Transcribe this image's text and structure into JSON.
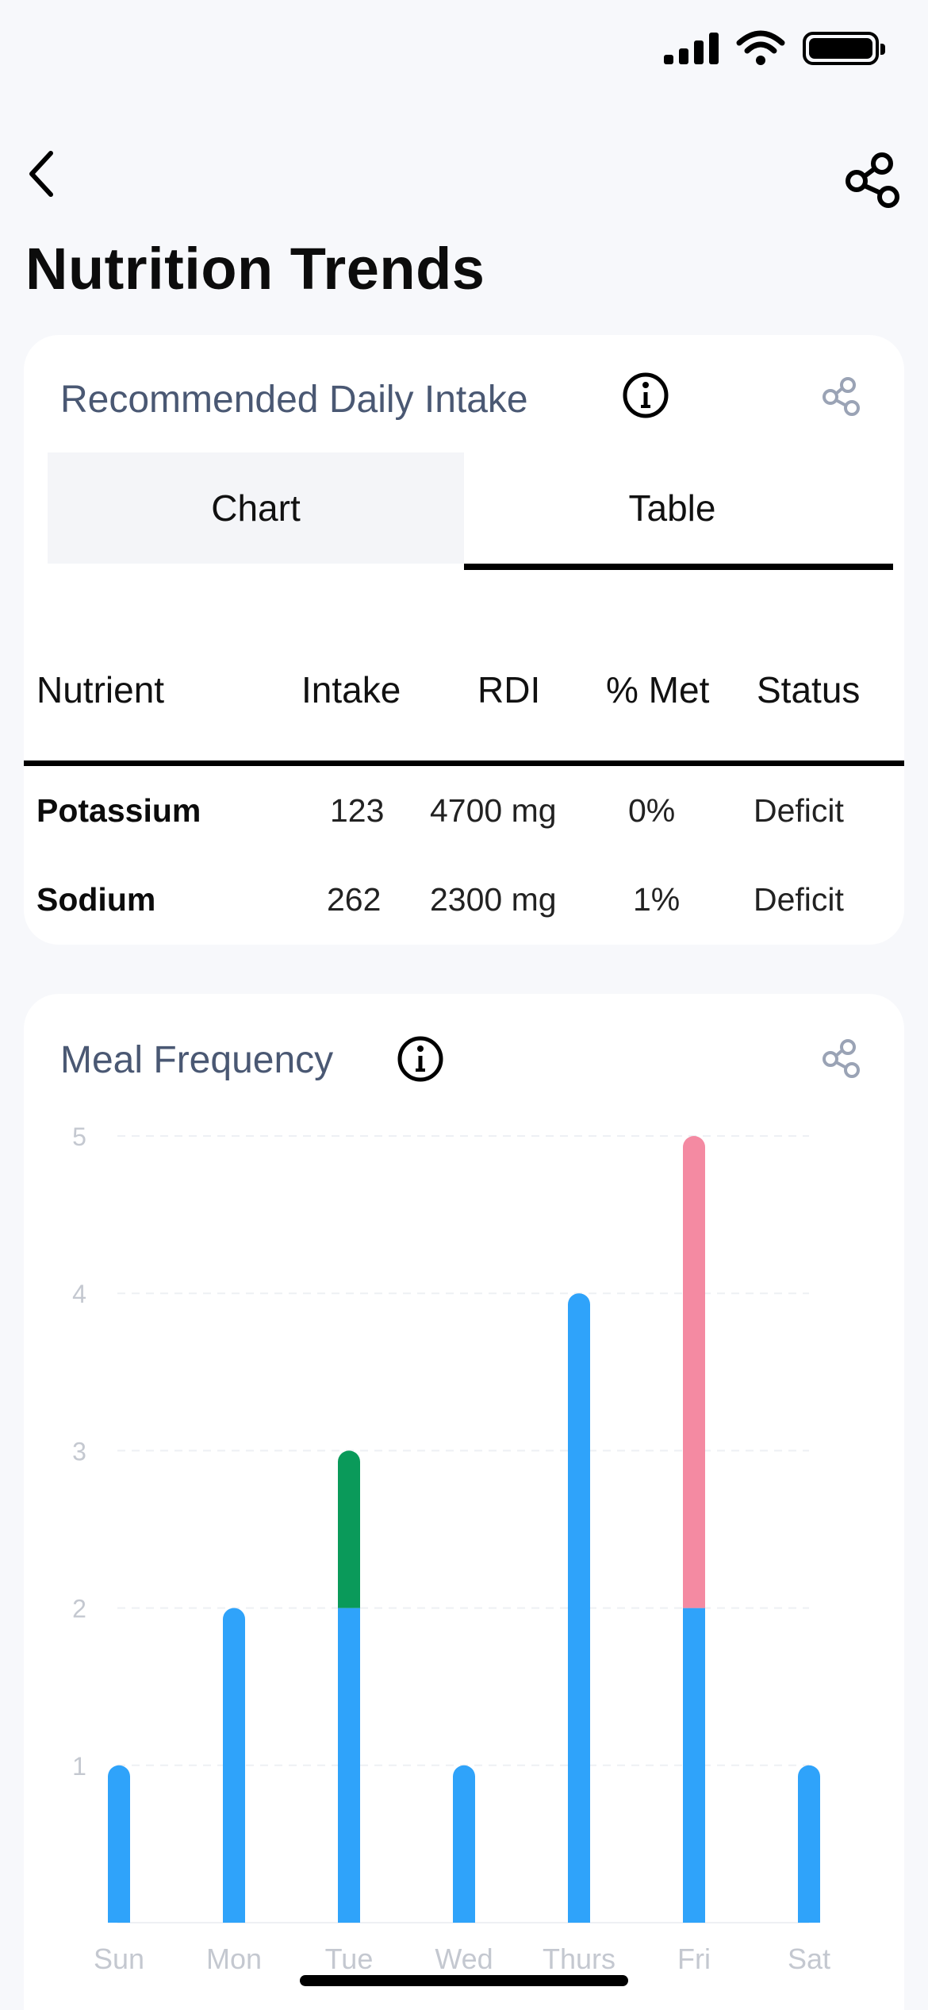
{
  "page": {
    "title": "Nutrition Trends"
  },
  "rdi_card": {
    "title": "Recommended Daily Intake",
    "tabs": {
      "chart": "Chart",
      "table": "Table"
    },
    "table": {
      "headers": {
        "nutrient": "Nutrient",
        "intake": "Intake",
        "rdi": "RDI",
        "met": "% Met",
        "status": "Status"
      },
      "rows": [
        {
          "nutrient": "Potassium",
          "intake": "123",
          "rdi": "4700 mg",
          "met": "0%",
          "status": "Deficit"
        },
        {
          "nutrient": "Sodium",
          "intake": "262",
          "rdi": "2300 mg",
          "met": "1%",
          "status": "Deficit"
        }
      ]
    }
  },
  "meal_card": {
    "title": "Meal Frequency"
  },
  "icons": {
    "back": "chevron-left-icon",
    "share": "share-icon",
    "info": "info-icon"
  },
  "colors": {
    "blue": "#2fa3fa",
    "green": "#0a9a5a",
    "pink": "#f48aa2",
    "title_gray": "#4a5873"
  },
  "chart_data": {
    "type": "bar",
    "stacked": true,
    "categories": [
      "Sun",
      "Mon",
      "Tue",
      "Wed",
      "Thurs",
      "Fri",
      "Sat"
    ],
    "series": [
      {
        "values": [
          1,
          2,
          2,
          1,
          4,
          2,
          1
        ],
        "color": "#2fa3fa"
      },
      {
        "values": [
          0,
          0,
          1,
          0,
          0,
          0,
          0
        ],
        "color": "#0a9a5a"
      },
      {
        "values": [
          0,
          0,
          0,
          0,
          0,
          3,
          0
        ],
        "color": "#f48aa2"
      }
    ],
    "yticks": [
      1,
      2,
      3,
      4,
      5
    ],
    "ylim": [
      0,
      5
    ],
    "grid": true
  }
}
